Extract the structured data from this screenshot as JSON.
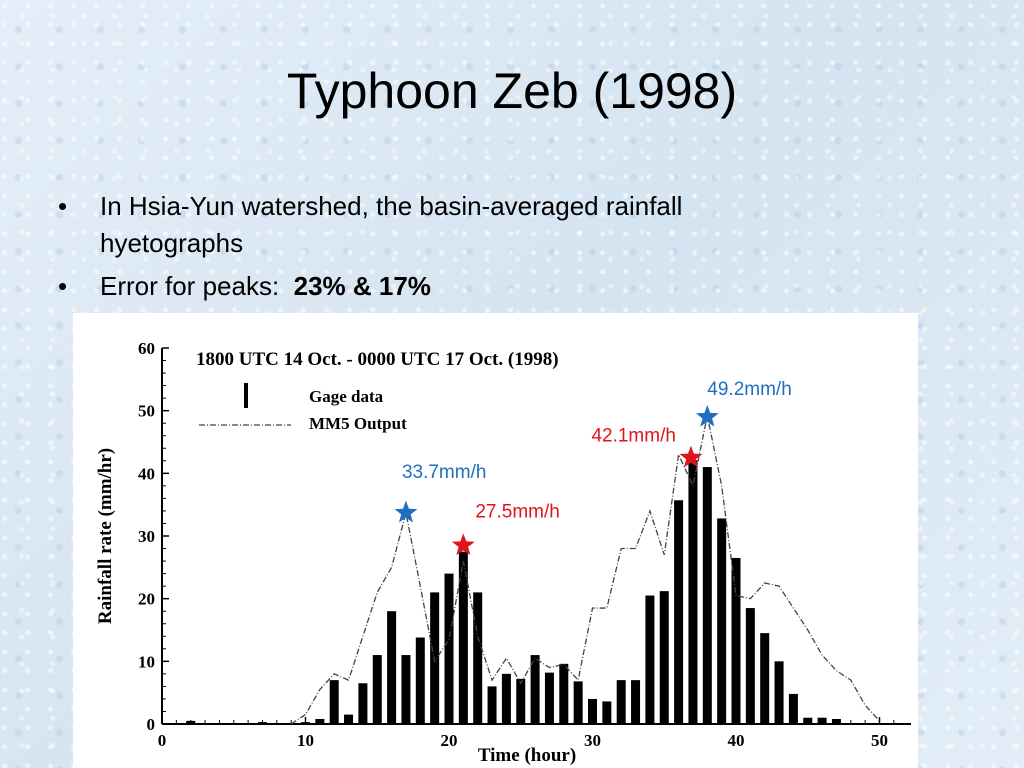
{
  "slide": {
    "title": "Typhoon Zeb (1998)",
    "bullets": [
      {
        "text": "In Hsia-Yun watershed, the basin-averaged rainfall hyetographs"
      },
      {
        "text": "Error for peaks:",
        "bold": "23% & 17%"
      }
    ]
  },
  "colors": {
    "blue_annotation": "#1f6fbf",
    "red_annotation": "#e0141c",
    "bars": "#000000"
  },
  "chart_data": {
    "type": "bar",
    "title": "1800 UTC 14 Oct. - 0000 UTC 17 Oct. (1998)",
    "xlabel": "Time (hour)",
    "ylabel": "Rainfall rate (mm/hr)",
    "xlim": [
      0,
      52
    ],
    "ylim": [
      0,
      60
    ],
    "xticks": [
      0,
      10,
      20,
      30,
      40,
      50
    ],
    "yticks": [
      0,
      10,
      20,
      30,
      40,
      50,
      60
    ],
    "legend": {
      "position": "top-left",
      "entries": [
        "Gage data",
        "MM5 Output"
      ]
    },
    "series": [
      {
        "name": "Gage data",
        "type": "bar",
        "x": [
          2,
          7,
          10,
          11,
          12,
          13,
          14,
          15,
          16,
          17,
          18,
          19,
          20,
          21,
          22,
          23,
          24,
          25,
          26,
          27,
          28,
          29,
          30,
          31,
          32,
          33,
          34,
          35,
          36,
          37,
          38,
          39,
          40,
          41,
          42,
          43,
          44,
          45,
          46,
          47
        ],
        "values": [
          0.5,
          0.3,
          0.3,
          0.8,
          7,
          1.5,
          6.5,
          11,
          18,
          11,
          13.8,
          21,
          24,
          27.5,
          21,
          6,
          8,
          7.2,
          11,
          8.2,
          9.6,
          6.8,
          4,
          3.6,
          7,
          7,
          20.5,
          21.2,
          35.7,
          42.1,
          41,
          32.8,
          26.5,
          18.5,
          14.5,
          10,
          4.8,
          1,
          1,
          0.8
        ]
      },
      {
        "name": "MM5 Output",
        "type": "line",
        "x": [
          9,
          10,
          11,
          12,
          13,
          14,
          15,
          16,
          17,
          18,
          19,
          20,
          21,
          22,
          23,
          24,
          25,
          26,
          27,
          28,
          29,
          30,
          31,
          32,
          33,
          34,
          35,
          36,
          37,
          38,
          39,
          40,
          41,
          42,
          43,
          44,
          45,
          46,
          47,
          48,
          49,
          50
        ],
        "values": [
          0,
          1.5,
          5.5,
          8,
          7,
          14,
          21,
          25,
          33.7,
          22,
          10,
          13.5,
          26,
          14,
          7,
          10.5,
          6.5,
          10.5,
          9,
          9.5,
          7,
          18.5,
          18.5,
          28,
          28,
          34,
          27,
          43,
          38,
          49.2,
          38,
          20.5,
          20,
          22.5,
          22,
          18.5,
          15,
          11,
          8.5,
          7,
          3,
          0.5
        ]
      }
    ],
    "annotations": [
      {
        "label": "33.7mm/h",
        "x": 17,
        "y": 33.7,
        "color": "blue"
      },
      {
        "label": "27.5mm/h",
        "x": 21,
        "y": 28.5,
        "color": "red"
      },
      {
        "label": "42.1mm/h",
        "x": 37,
        "y": 42.5,
        "color": "red"
      },
      {
        "label": "49.2mm/h",
        "x": 38,
        "y": 49,
        "color": "blue"
      }
    ]
  }
}
